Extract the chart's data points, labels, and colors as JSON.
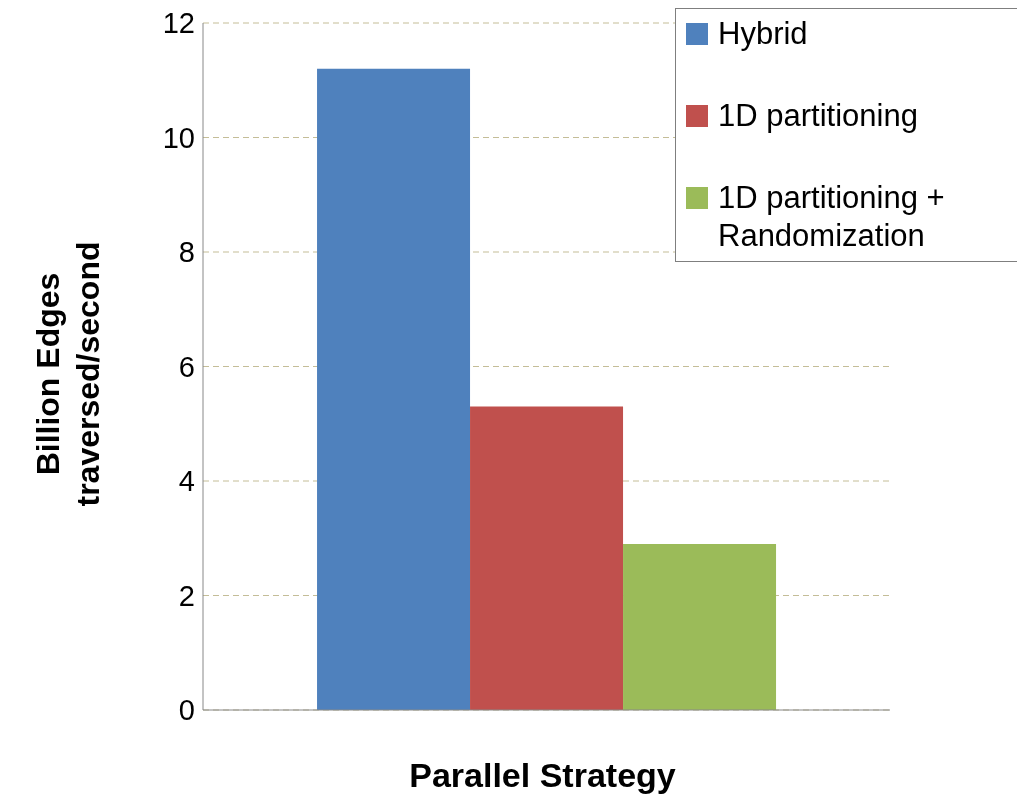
{
  "chart_data": {
    "type": "bar",
    "xlabel": "Parallel Strategy",
    "ylabel": "Billion Edges traversed/second",
    "categories": [
      null
    ],
    "series": [
      {
        "name": "Hybrid",
        "color": "#4f81bd",
        "values": [
          11.2
        ]
      },
      {
        "name": "1D partitioning",
        "color": "#c0504d",
        "values": [
          5.3
        ]
      },
      {
        "name": "1D partitioning + Randomization",
        "color": "#9bbb59",
        "values": [
          2.9
        ]
      }
    ],
    "ylim": [
      0,
      12
    ],
    "yticks": [
      0,
      2,
      4,
      6,
      8,
      10,
      12
    ],
    "grid": "y",
    "legend": "top right"
  }
}
